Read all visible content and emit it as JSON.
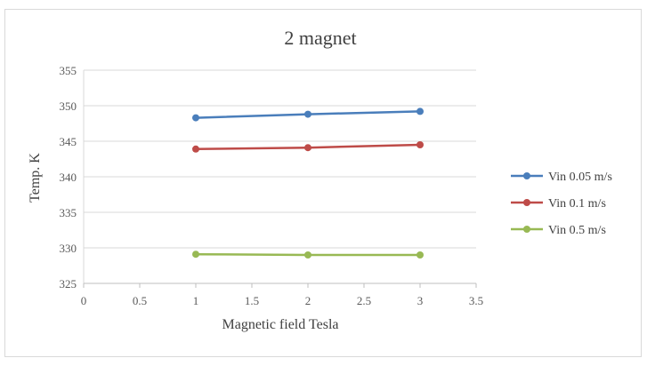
{
  "chart_data": {
    "type": "line",
    "title": "2 magnet",
    "xlabel": "Magnetic field Tesla",
    "ylabel": "Temp. K",
    "xlim": [
      0,
      3.5
    ],
    "ylim": [
      325,
      355
    ],
    "x_ticks": [
      "0",
      "0.5",
      "1",
      "1.5",
      "2",
      "2.5",
      "3",
      "3.5"
    ],
    "y_ticks": [
      "325",
      "330",
      "335",
      "340",
      "345",
      "350",
      "355"
    ],
    "grid": true,
    "legend_position": "right",
    "x": [
      1,
      2,
      3
    ],
    "series": [
      {
        "name": "Vin 0.05 m/s",
        "color": "#4a7ebb",
        "values": [
          348.3,
          348.8,
          349.2
        ]
      },
      {
        "name": "Vin 0.1 m/s",
        "color": "#be4b48",
        "values": [
          343.9,
          344.1,
          344.5
        ]
      },
      {
        "name": "Vin 0.5 m/s",
        "color": "#98b954",
        "values": [
          329.1,
          329.0,
          329.0
        ]
      }
    ]
  }
}
